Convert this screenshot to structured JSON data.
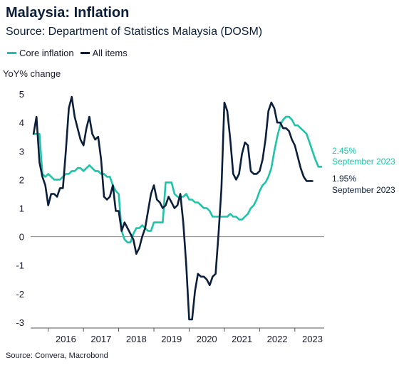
{
  "header": {
    "title": "Malaysia: Inflation",
    "subtitle": "Source: Department of Statistics Malaysia (DOSM)"
  },
  "footer": {
    "source": "Source: Convera, Macrobond"
  },
  "chart_data": {
    "type": "line",
    "title": "Malaysia: Inflation",
    "ylabel": "YoY% change",
    "xlabel": "",
    "ylim": [
      -3.2,
      5.4
    ],
    "xlim": [
      "2015-07",
      "2023-11"
    ],
    "yticks": [
      5,
      4,
      3,
      2,
      1,
      0,
      -1,
      -2,
      -3
    ],
    "xticks": [
      "2016",
      "2017",
      "2018",
      "2019",
      "2020",
      "2021",
      "2022",
      "2023"
    ],
    "grid": false,
    "legend_position": "top-left",
    "series": [
      {
        "name": "Core inflation",
        "color": "#1fc3a8",
        "points": [
          [
            "2015-08",
            3.6
          ],
          [
            "2015-09",
            3.6
          ],
          [
            "2015-10",
            3.6
          ],
          [
            "2015-11",
            2.2
          ],
          [
            "2015-12",
            2.1
          ],
          [
            "2016-01",
            2.2
          ],
          [
            "2016-02",
            2.1
          ],
          [
            "2016-03",
            2.0
          ],
          [
            "2016-04",
            2.0
          ],
          [
            "2016-05",
            2.0
          ],
          [
            "2016-06",
            2.1
          ],
          [
            "2016-07",
            2.2
          ],
          [
            "2016-08",
            2.2
          ],
          [
            "2016-09",
            2.3
          ],
          [
            "2016-10",
            2.3
          ],
          [
            "2016-11",
            2.4
          ],
          [
            "2016-12",
            2.4
          ],
          [
            "2017-01",
            2.3
          ],
          [
            "2017-02",
            2.4
          ],
          [
            "2017-03",
            2.5
          ],
          [
            "2017-04",
            2.4
          ],
          [
            "2017-05",
            2.3
          ],
          [
            "2017-06",
            2.3
          ],
          [
            "2017-07",
            2.2
          ],
          [
            "2017-08",
            2.2
          ],
          [
            "2017-09",
            2.1
          ],
          [
            "2017-10",
            2.1
          ],
          [
            "2017-11",
            1.8
          ],
          [
            "2017-12",
            1.6
          ],
          [
            "2018-01",
            1.5
          ],
          [
            "2018-02",
            0.2
          ],
          [
            "2018-03",
            -0.1
          ],
          [
            "2018-04",
            -0.2
          ],
          [
            "2018-05",
            -0.2
          ],
          [
            "2018-06",
            0.1
          ],
          [
            "2018-07",
            0.3
          ],
          [
            "2018-08",
            0.3
          ],
          [
            "2018-09",
            0.4
          ],
          [
            "2018-10",
            0.3
          ],
          [
            "2018-11",
            0.2
          ],
          [
            "2018-12",
            0.2
          ],
          [
            "2019-01",
            0.5
          ],
          [
            "2019-02",
            0.5
          ],
          [
            "2019-03",
            0.5
          ],
          [
            "2019-04",
            0.5
          ],
          [
            "2019-05",
            1.9
          ],
          [
            "2019-06",
            1.9
          ],
          [
            "2019-07",
            1.9
          ],
          [
            "2019-08",
            1.5
          ],
          [
            "2019-09",
            1.4
          ],
          [
            "2019-10",
            1.4
          ],
          [
            "2019-11",
            1.4
          ],
          [
            "2019-12",
            1.5
          ],
          [
            "2020-01",
            1.3
          ],
          [
            "2020-02",
            1.3
          ],
          [
            "2020-03",
            1.2
          ],
          [
            "2020-04",
            1.2
          ],
          [
            "2020-05",
            1.1
          ],
          [
            "2020-06",
            1.0
          ],
          [
            "2020-07",
            1.0
          ],
          [
            "2020-08",
            0.9
          ],
          [
            "2020-09",
            0.7
          ],
          [
            "2020-10",
            0.7
          ],
          [
            "2020-11",
            0.7
          ],
          [
            "2020-12",
            0.7
          ],
          [
            "2021-01",
            0.7
          ],
          [
            "2021-02",
            0.7
          ],
          [
            "2021-03",
            0.8
          ],
          [
            "2021-04",
            0.7
          ],
          [
            "2021-05",
            0.7
          ],
          [
            "2021-06",
            0.6
          ],
          [
            "2021-07",
            0.6
          ],
          [
            "2021-08",
            0.7
          ],
          [
            "2021-09",
            0.8
          ],
          [
            "2021-10",
            1.0
          ],
          [
            "2021-11",
            1.1
          ],
          [
            "2021-12",
            1.3
          ],
          [
            "2022-01",
            1.6
          ],
          [
            "2022-02",
            1.8
          ],
          [
            "2022-03",
            1.9
          ],
          [
            "2022-04",
            2.1
          ],
          [
            "2022-05",
            2.4
          ],
          [
            "2022-06",
            3.0
          ],
          [
            "2022-07",
            3.5
          ],
          [
            "2022-08",
            3.9
          ],
          [
            "2022-09",
            4.1
          ],
          [
            "2022-10",
            4.2
          ],
          [
            "2022-11",
            4.2
          ],
          [
            "2022-12",
            4.1
          ],
          [
            "2023-01",
            3.9
          ],
          [
            "2023-02",
            3.9
          ],
          [
            "2023-03",
            3.8
          ],
          [
            "2023-04",
            3.7
          ],
          [
            "2023-05",
            3.6
          ],
          [
            "2023-06",
            3.3
          ],
          [
            "2023-07",
            3.0
          ],
          [
            "2023-08",
            2.7
          ],
          [
            "2023-09",
            2.45
          ],
          [
            "2023-10",
            2.45
          ]
        ],
        "end_label": {
          "value": "2.45%",
          "date": "September 2023"
        }
      },
      {
        "name": "All items",
        "color": "#0b1f3a",
        "points": [
          [
            "2015-08",
            3.6
          ],
          [
            "2015-09",
            4.2
          ],
          [
            "2015-10",
            2.6
          ],
          [
            "2015-11",
            2.1
          ],
          [
            "2015-12",
            1.8
          ],
          [
            "2016-01",
            1.1
          ],
          [
            "2016-02",
            1.5
          ],
          [
            "2016-03",
            1.5
          ],
          [
            "2016-04",
            1.4
          ],
          [
            "2016-05",
            1.7
          ],
          [
            "2016-06",
            1.7
          ],
          [
            "2016-07",
            3.0
          ],
          [
            "2016-08",
            4.5
          ],
          [
            "2016-09",
            4.9
          ],
          [
            "2016-10",
            4.2
          ],
          [
            "2016-11",
            3.8
          ],
          [
            "2016-12",
            3.4
          ],
          [
            "2017-01",
            3.2
          ],
          [
            "2017-02",
            3.8
          ],
          [
            "2017-03",
            4.2
          ],
          [
            "2017-04",
            3.6
          ],
          [
            "2017-05",
            3.4
          ],
          [
            "2017-06",
            3.5
          ],
          [
            "2017-07",
            2.7
          ],
          [
            "2017-08",
            1.4
          ],
          [
            "2017-09",
            1.3
          ],
          [
            "2017-10",
            1.4
          ],
          [
            "2017-11",
            1.8
          ],
          [
            "2017-12",
            0.9
          ],
          [
            "2018-01",
            0.9
          ],
          [
            "2018-02",
            0.2
          ],
          [
            "2018-03",
            0.5
          ],
          [
            "2018-04",
            0.3
          ],
          [
            "2018-05",
            0.1
          ],
          [
            "2018-06",
            -0.1
          ],
          [
            "2018-07",
            -0.6
          ],
          [
            "2018-08",
            -0.4
          ],
          [
            "2018-09",
            0.0
          ],
          [
            "2018-10",
            0.3
          ],
          [
            "2018-11",
            0.9
          ],
          [
            "2018-12",
            1.5
          ],
          [
            "2019-01",
            1.8
          ],
          [
            "2019-02",
            1.3
          ],
          [
            "2019-03",
            1.2
          ],
          [
            "2019-04",
            1.0
          ],
          [
            "2019-05",
            1.1
          ],
          [
            "2019-06",
            1.4
          ],
          [
            "2019-07",
            1.2
          ],
          [
            "2019-08",
            1.0
          ],
          [
            "2019-09",
            1.1
          ],
          [
            "2019-10",
            1.5
          ],
          [
            "2019-11",
            0.5
          ],
          [
            "2019-12",
            -1.0
          ],
          [
            "2020-01",
            -2.9
          ],
          [
            "2020-02",
            -2.9
          ],
          [
            "2020-03",
            -1.9
          ],
          [
            "2020-04",
            -1.3
          ],
          [
            "2020-05",
            -1.4
          ],
          [
            "2020-06",
            -1.4
          ],
          [
            "2020-07",
            -1.5
          ],
          [
            "2020-08",
            -1.7
          ],
          [
            "2020-09",
            -1.4
          ],
          [
            "2020-10",
            -1.3
          ],
          [
            "2020-11",
            0.1
          ],
          [
            "2020-12",
            1.7
          ],
          [
            "2021-01",
            4.7
          ],
          [
            "2021-02",
            4.4
          ],
          [
            "2021-03",
            3.4
          ],
          [
            "2021-04",
            2.2
          ],
          [
            "2021-05",
            2.0
          ],
          [
            "2021-06",
            2.2
          ],
          [
            "2021-07",
            2.9
          ],
          [
            "2021-08",
            3.3
          ],
          [
            "2021-09",
            3.2
          ],
          [
            "2021-10",
            2.3
          ],
          [
            "2021-11",
            2.2
          ],
          [
            "2021-12",
            2.2
          ],
          [
            "2022-01",
            2.3
          ],
          [
            "2022-02",
            2.7
          ],
          [
            "2022-03",
            3.4
          ],
          [
            "2022-04",
            4.4
          ],
          [
            "2022-05",
            4.7
          ],
          [
            "2022-06",
            4.5
          ],
          [
            "2022-07",
            4.0
          ],
          [
            "2022-08",
            4.0
          ],
          [
            "2022-09",
            3.8
          ],
          [
            "2022-10",
            3.8
          ],
          [
            "2022-11",
            3.7
          ],
          [
            "2022-12",
            3.4
          ],
          [
            "2023-01",
            3.2
          ],
          [
            "2023-02",
            2.8
          ],
          [
            "2023-03",
            2.4
          ],
          [
            "2023-04",
            2.1
          ],
          [
            "2023-05",
            1.95
          ],
          [
            "2023-06",
            1.95
          ],
          [
            "2023-07",
            1.95
          ]
        ],
        "end_label": {
          "value": "1.95%",
          "date": "September 2023"
        }
      }
    ]
  }
}
